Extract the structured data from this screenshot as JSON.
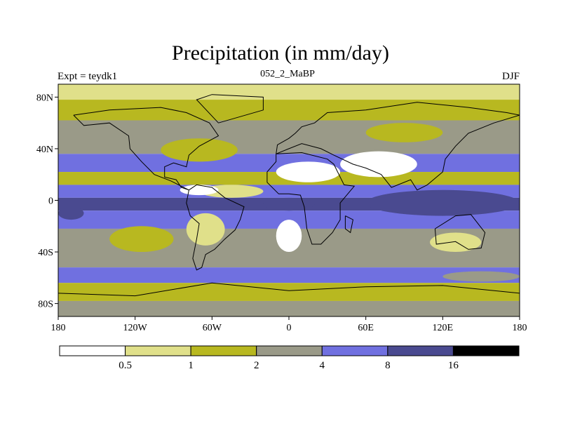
{
  "title": "Precipitation (in mm/day)",
  "subtitle": "052_2_MaBP",
  "left_label": "Expt = teydk1",
  "right_label": "DJF",
  "map": {
    "projection": "cylindrical-equidistant",
    "lon_range": [
      -180,
      180
    ],
    "lat_range": [
      -90,
      90
    ],
    "x_ticks": [
      {
        "value": -180,
        "label": "180"
      },
      {
        "value": -120,
        "label": "120W"
      },
      {
        "value": -60,
        "label": "60W"
      },
      {
        "value": 0,
        "label": "0"
      },
      {
        "value": 60,
        "label": "60E"
      },
      {
        "value": 120,
        "label": "120E"
      },
      {
        "value": 180,
        "label": "180"
      }
    ],
    "y_ticks": [
      {
        "value": 80,
        "label": "80N"
      },
      {
        "value": 40,
        "label": "40N"
      },
      {
        "value": 0,
        "label": "0"
      },
      {
        "value": -40,
        "label": "40S"
      },
      {
        "value": -80,
        "label": "80S"
      }
    ],
    "bands": [
      {
        "lat_top": 90,
        "lat_bottom": 78,
        "level": 1
      },
      {
        "lat_top": 78,
        "lat_bottom": 62,
        "level": 2
      },
      {
        "lat_top": 62,
        "lat_bottom": 36,
        "level": 3
      },
      {
        "lat_top": 36,
        "lat_bottom": 22,
        "level": 4
      },
      {
        "lat_top": 22,
        "lat_bottom": 12,
        "level": 2
      },
      {
        "lat_top": 12,
        "lat_bottom": 2,
        "level": 4
      },
      {
        "lat_top": 2,
        "lat_bottom": -8,
        "level": 5
      },
      {
        "lat_top": -8,
        "lat_bottom": -22,
        "level": 4
      },
      {
        "lat_top": -22,
        "lat_bottom": -52,
        "level": 3
      },
      {
        "lat_top": -52,
        "lat_bottom": -64,
        "level": 4
      },
      {
        "lat_top": -64,
        "lat_bottom": -78,
        "level": 2
      },
      {
        "lat_top": -78,
        "lat_bottom": -90,
        "level": 3
      }
    ],
    "patches": [
      {
        "lon": [
          -100,
          -40
        ],
        "lat": [
          48,
          30
        ],
        "level": 2
      },
      {
        "lon": [
          -70,
          -20
        ],
        "lat": [
          12,
          2
        ],
        "level": 1
      },
      {
        "lon": [
          -85,
          -55
        ],
        "lat": [
          12,
          4
        ],
        "level": 0
      },
      {
        "lon": [
          -10,
          40
        ],
        "lat": [
          30,
          14
        ],
        "level": 0
      },
      {
        "lon": [
          40,
          100
        ],
        "lat": [
          38,
          18
        ],
        "level": 0
      },
      {
        "lon": [
          -20,
          20
        ],
        "lat": [
          2,
          -8
        ],
        "level": 5
      },
      {
        "lon": [
          60,
          180
        ],
        "lat": [
          8,
          -12
        ],
        "level": 5
      },
      {
        "lon": [
          -180,
          -160
        ],
        "lat": [
          -5,
          -15
        ],
        "level": 5
      },
      {
        "lon": [
          -80,
          -50
        ],
        "lat": [
          -10,
          -35
        ],
        "level": 1
      },
      {
        "lon": [
          -10,
          10
        ],
        "lat": [
          -15,
          -40
        ],
        "level": 0
      },
      {
        "lon": [
          110,
          150
        ],
        "lat": [
          -25,
          -40
        ],
        "level": 1
      },
      {
        "lon": [
          -140,
          -90
        ],
        "lat": [
          -20,
          -40
        ],
        "level": 2
      },
      {
        "lon": [
          60,
          120
        ],
        "lat": [
          60,
          45
        ],
        "level": 2
      },
      {
        "lon": [
          120,
          180
        ],
        "lat": [
          -55,
          -63
        ],
        "level": 3
      }
    ],
    "coast": [
      [
        [
          -168,
          66
        ],
        [
          -140,
          70
        ],
        [
          -100,
          72
        ],
        [
          -80,
          68
        ],
        [
          -62,
          60
        ],
        [
          -55,
          50
        ],
        [
          -70,
          42
        ],
        [
          -78,
          35
        ],
        [
          -80,
          26
        ],
        [
          -90,
          29
        ],
        [
          -97,
          26
        ],
        [
          -97,
          18
        ],
        [
          -88,
          16
        ],
        [
          -84,
          10
        ],
        [
          -78,
          8
        ],
        [
          -92,
          15
        ],
        [
          -105,
          20
        ],
        [
          -115,
          30
        ],
        [
          -124,
          40
        ],
        [
          -125,
          50
        ],
        [
          -140,
          60
        ],
        [
          -160,
          58
        ],
        [
          -168,
          66
        ]
      ],
      [
        [
          -78,
          8
        ],
        [
          -72,
          12
        ],
        [
          -60,
          10
        ],
        [
          -50,
          2
        ],
        [
          -35,
          -5
        ],
        [
          -38,
          -15
        ],
        [
          -42,
          -23
        ],
        [
          -50,
          -30
        ],
        [
          -58,
          -38
        ],
        [
          -65,
          -42
        ],
        [
          -68,
          -52
        ],
        [
          -72,
          -54
        ],
        [
          -75,
          -45
        ],
        [
          -72,
          -30
        ],
        [
          -70,
          -18
        ],
        [
          -77,
          -12
        ],
        [
          -80,
          -2
        ],
        [
          -78,
          8
        ]
      ],
      [
        [
          -10,
          36
        ],
        [
          10,
          37
        ],
        [
          30,
          32
        ],
        [
          35,
          28
        ],
        [
          43,
          12
        ],
        [
          51,
          11
        ],
        [
          40,
          -2
        ],
        [
          40,
          -15
        ],
        [
          34,
          -25
        ],
        [
          25,
          -34
        ],
        [
          18,
          -34
        ],
        [
          14,
          -22
        ],
        [
          12,
          -5
        ],
        [
          9,
          4
        ],
        [
          0,
          5
        ],
        [
          -8,
          5
        ],
        [
          -17,
          14
        ],
        [
          -17,
          22
        ],
        [
          -10,
          30
        ],
        [
          -10,
          36
        ]
      ],
      [
        [
          -10,
          36
        ],
        [
          -9,
          43
        ],
        [
          0,
          48
        ],
        [
          5,
          52
        ],
        [
          10,
          57
        ],
        [
          20,
          60
        ],
        [
          30,
          68
        ],
        [
          60,
          70
        ],
        [
          100,
          76
        ],
        [
          140,
          72
        ],
        [
          170,
          68
        ],
        [
          180,
          66
        ],
        [
          160,
          60
        ],
        [
          140,
          52
        ],
        [
          130,
          42
        ],
        [
          122,
          32
        ],
        [
          120,
          22
        ],
        [
          108,
          12
        ],
        [
          100,
          8
        ],
        [
          95,
          16
        ],
        [
          80,
          10
        ],
        [
          72,
          20
        ],
        [
          60,
          25
        ],
        [
          50,
          28
        ],
        [
          35,
          35
        ],
        [
          25,
          40
        ],
        [
          10,
          44
        ],
        [
          0,
          40
        ],
        [
          -10,
          36
        ]
      ],
      [
        [
          114,
          -22
        ],
        [
          130,
          -12
        ],
        [
          142,
          -11
        ],
        [
          153,
          -25
        ],
        [
          150,
          -37
        ],
        [
          140,
          -38
        ],
        [
          130,
          -32
        ],
        [
          115,
          -34
        ],
        [
          114,
          -22
        ]
      ],
      [
        [
          -55,
          60
        ],
        [
          -20,
          70
        ],
        [
          -20,
          80
        ],
        [
          -60,
          82
        ],
        [
          -72,
          78
        ],
        [
          -55,
          60
        ]
      ],
      [
        [
          -180,
          -72
        ],
        [
          -120,
          -74
        ],
        [
          -60,
          -64
        ],
        [
          0,
          -70
        ],
        [
          60,
          -67
        ],
        [
          120,
          -66
        ],
        [
          180,
          -72
        ]
      ],
      [
        [
          44,
          -12
        ],
        [
          50,
          -15
        ],
        [
          48,
          -25
        ],
        [
          44,
          -22
        ],
        [
          44,
          -12
        ]
      ]
    ]
  },
  "colorbar": {
    "colors": [
      "#ffffff",
      "#e0e08a",
      "#b8b820",
      "#9a9a88",
      "#7070e0",
      "#4a4a90",
      "#000000"
    ],
    "labels": [
      "0.5",
      "1",
      "2",
      "4",
      "8",
      "16"
    ],
    "outline_color": "#000000"
  }
}
